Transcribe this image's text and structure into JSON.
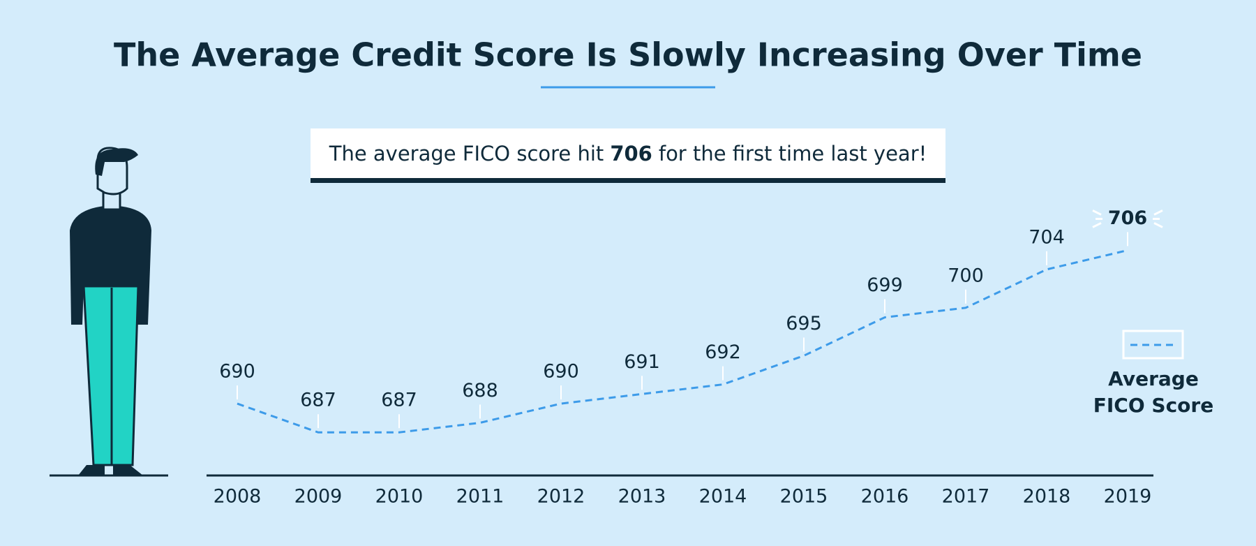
{
  "chart_data": {
    "type": "line",
    "title": "The Average Credit Score Is Slowly Increasing Over Time",
    "callout": {
      "before": "The average FICO score hit",
      "highlight": "706",
      "after": "for the first time last year!"
    },
    "categories": [
      "2008",
      "2009",
      "2010",
      "2011",
      "2012",
      "2013",
      "2014",
      "2015",
      "2016",
      "2017",
      "2018",
      "2019"
    ],
    "series": [
      {
        "name": "Average FICO Score",
        "color": "#3d9be9",
        "values": [
          690,
          687,
          687,
          688,
          690,
          691,
          692,
          695,
          699,
          700,
          704,
          706
        ]
      }
    ],
    "ylim": [
      682.5,
      708
    ],
    "legend": "right"
  }
}
